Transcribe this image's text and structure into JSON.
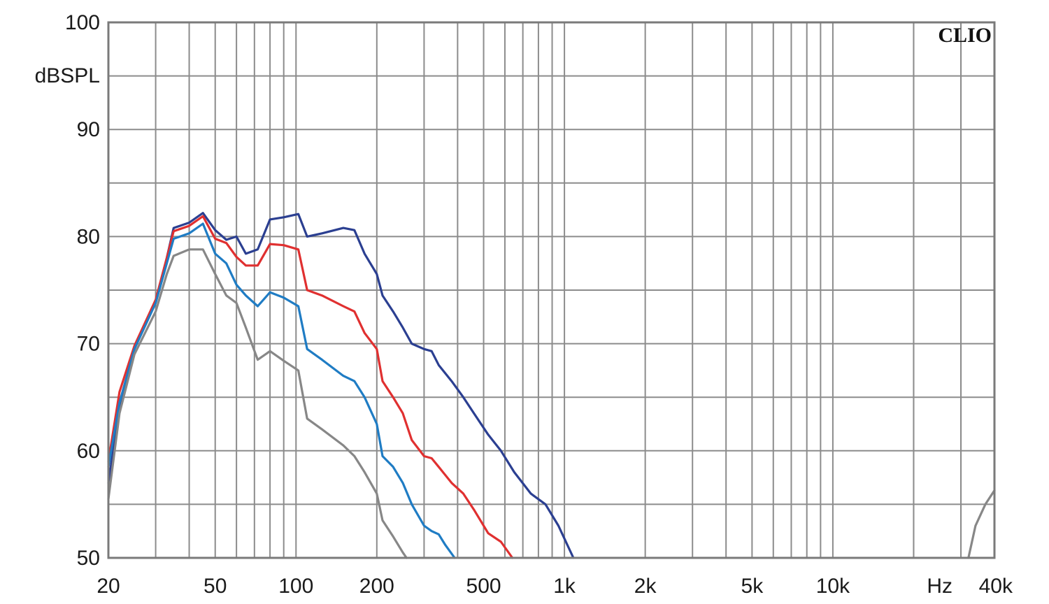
{
  "chart_data": {
    "type": "line",
    "brand": "CLIO",
    "ylabel": "dBSPL",
    "xunit": "Hz",
    "x_scale": "log",
    "xlim": [
      20,
      40000
    ],
    "ylim": [
      50,
      100
    ],
    "grid": true,
    "y_ticks": [
      {
        "value": 100,
        "label": "100"
      },
      {
        "value": 90,
        "label": "90"
      },
      {
        "value": 80,
        "label": "80"
      },
      {
        "value": 70,
        "label": "70"
      },
      {
        "value": 60,
        "label": "60"
      },
      {
        "value": 50,
        "label": "50"
      }
    ],
    "x_ticks": [
      {
        "value": 20,
        "label": "20"
      },
      {
        "value": 50,
        "label": "50"
      },
      {
        "value": 100,
        "label": "100"
      },
      {
        "value": 200,
        "label": "200"
      },
      {
        "value": 500,
        "label": "500"
      },
      {
        "value": 1000,
        "label": "1k"
      },
      {
        "value": 2000,
        "label": "2k"
      },
      {
        "value": 5000,
        "label": "5k"
      },
      {
        "value": 10000,
        "label": "10k"
      },
      {
        "value": 40000,
        "label": "40k"
      }
    ],
    "series": [
      {
        "color": "#2b3f91",
        "points": [
          [
            20,
            57
          ],
          [
            22,
            64
          ],
          [
            25,
            69.5
          ],
          [
            30,
            74
          ],
          [
            33,
            78
          ],
          [
            35,
            80.8
          ],
          [
            40,
            81.3
          ],
          [
            45,
            82.2
          ],
          [
            50,
            80.6
          ],
          [
            55,
            79.7
          ],
          [
            60,
            80
          ],
          [
            65,
            78.4
          ],
          [
            72,
            78.8
          ],
          [
            80,
            81.6
          ],
          [
            90,
            81.8
          ],
          [
            102,
            82.1
          ],
          [
            110,
            80
          ],
          [
            125,
            80.3
          ],
          [
            150,
            80.8
          ],
          [
            165,
            80.6
          ],
          [
            180,
            78.4
          ],
          [
            200,
            76.5
          ],
          [
            210,
            74.5
          ],
          [
            230,
            73
          ],
          [
            250,
            71.5
          ],
          [
            270,
            70
          ],
          [
            300,
            69.5
          ],
          [
            320,
            69.3
          ],
          [
            340,
            68
          ],
          [
            380,
            66.5
          ],
          [
            420,
            65
          ],
          [
            460,
            63.5
          ],
          [
            520,
            61.5
          ],
          [
            580,
            60
          ],
          [
            650,
            58
          ],
          [
            750,
            56
          ],
          [
            850,
            55
          ],
          [
            950,
            53
          ],
          [
            1080,
            50
          ]
        ]
      },
      {
        "color": "#e03030",
        "points": [
          [
            20,
            59
          ],
          [
            22,
            65.5
          ],
          [
            25,
            69.8
          ],
          [
            30,
            74.1
          ],
          [
            33,
            78
          ],
          [
            35,
            80.5
          ],
          [
            40,
            81
          ],
          [
            45,
            81.9
          ],
          [
            50,
            79.8
          ],
          [
            55,
            79.4
          ],
          [
            60,
            78.1
          ],
          [
            65,
            77.3
          ],
          [
            72,
            77.3
          ],
          [
            80,
            79.3
          ],
          [
            90,
            79.2
          ],
          [
            102,
            78.8
          ],
          [
            110,
            75
          ],
          [
            125,
            74.5
          ],
          [
            150,
            73.5
          ],
          [
            165,
            73
          ],
          [
            180,
            71
          ],
          [
            200,
            69.5
          ],
          [
            210,
            66.5
          ],
          [
            230,
            65
          ],
          [
            250,
            63.5
          ],
          [
            270,
            61
          ],
          [
            300,
            59.5
          ],
          [
            320,
            59.3
          ],
          [
            340,
            58.5
          ],
          [
            380,
            57
          ],
          [
            420,
            56
          ],
          [
            460,
            54.5
          ],
          [
            520,
            52.3
          ],
          [
            580,
            51.5
          ],
          [
            640,
            50
          ]
        ]
      },
      {
        "color": "#1f7cc4",
        "points": [
          [
            20,
            58.5
          ],
          [
            22,
            64.5
          ],
          [
            25,
            69.5
          ],
          [
            30,
            73.8
          ],
          [
            33,
            77.5
          ],
          [
            35,
            79.8
          ],
          [
            40,
            80.3
          ],
          [
            45,
            81.2
          ],
          [
            50,
            78.4
          ],
          [
            55,
            77.5
          ],
          [
            60,
            75.5
          ],
          [
            65,
            74.5
          ],
          [
            72,
            73.5
          ],
          [
            80,
            74.8
          ],
          [
            90,
            74.3
          ],
          [
            102,
            73.5
          ],
          [
            110,
            69.5
          ],
          [
            125,
            68.5
          ],
          [
            150,
            67
          ],
          [
            165,
            66.5
          ],
          [
            180,
            65
          ],
          [
            200,
            62.5
          ],
          [
            210,
            59.5
          ],
          [
            230,
            58.5
          ],
          [
            250,
            57
          ],
          [
            270,
            55
          ],
          [
            300,
            53
          ],
          [
            320,
            52.5
          ],
          [
            340,
            52.2
          ],
          [
            360,
            51.2
          ],
          [
            390,
            50
          ]
        ]
      },
      {
        "color": "#878787",
        "points": [
          [
            20,
            55.5
          ],
          [
            22,
            63.5
          ],
          [
            25,
            69
          ],
          [
            30,
            73
          ],
          [
            33,
            76.5
          ],
          [
            35,
            78.2
          ],
          [
            40,
            78.8
          ],
          [
            45,
            78.8
          ],
          [
            50,
            76.5
          ],
          [
            55,
            74.5
          ],
          [
            60,
            73.8
          ],
          [
            65,
            71.5
          ],
          [
            72,
            68.5
          ],
          [
            80,
            69.3
          ],
          [
            90,
            68.4
          ],
          [
            102,
            67.5
          ],
          [
            110,
            63
          ],
          [
            125,
            62
          ],
          [
            150,
            60.5
          ],
          [
            165,
            59.5
          ],
          [
            180,
            58
          ],
          [
            200,
            56
          ],
          [
            210,
            53.5
          ],
          [
            230,
            52
          ],
          [
            250,
            50.5
          ],
          [
            258,
            50
          ]
        ]
      },
      {
        "color": "#878787",
        "points": [
          [
            32000,
            50
          ],
          [
            34000,
            53
          ],
          [
            37000,
            55
          ],
          [
            40000,
            56.3
          ]
        ]
      }
    ]
  }
}
